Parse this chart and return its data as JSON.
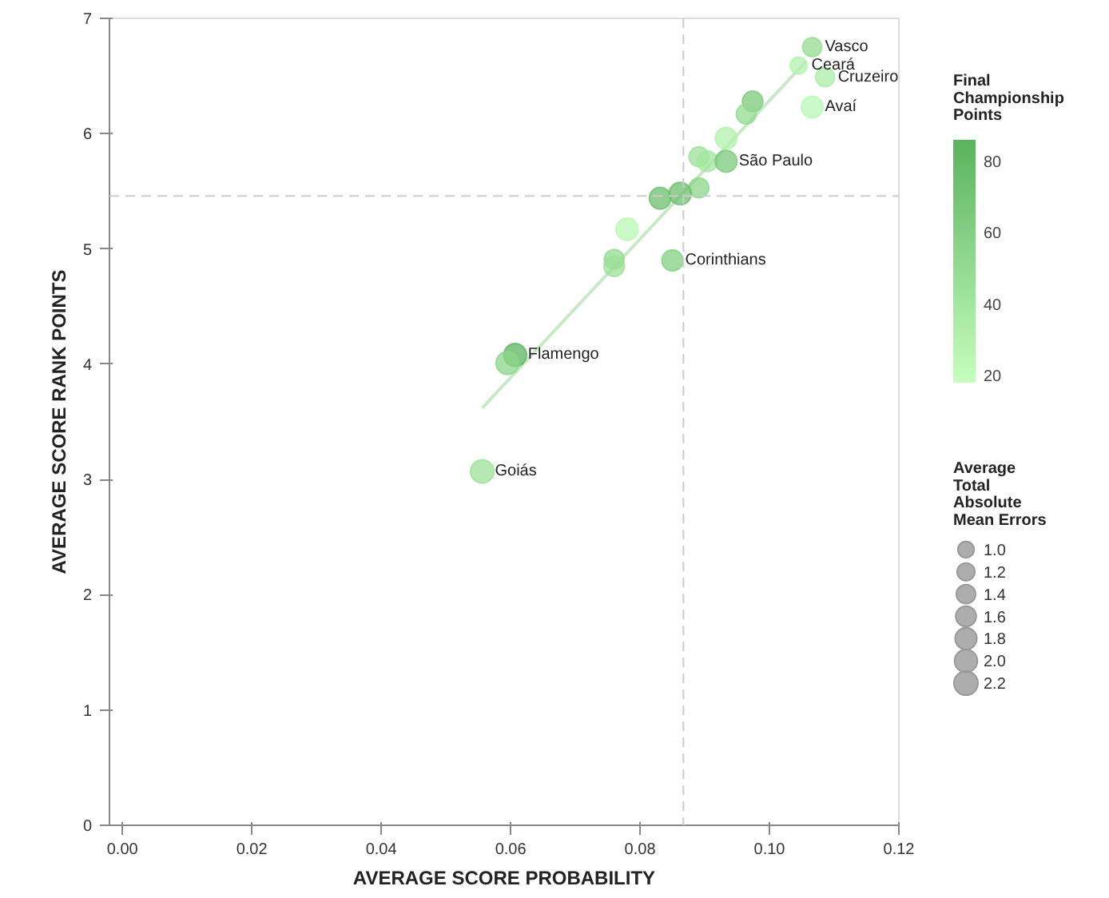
{
  "chart_data": {
    "type": "scatter",
    "xlabel": "AVERAGE SCORE PROBABILITY",
    "ylabel": "AVERAGE SCORE RANK POINTS",
    "clabel": "Final Championship Points",
    "legend_title": "Average Total Absolute Mean Errors",
    "xlim": [
      -0.002,
      0.12
    ],
    "ylim": [
      0,
      7
    ],
    "xticks": [
      {
        "value": 0,
        "label": "0.00"
      },
      {
        "value": 0.02,
        "label": "0.02"
      },
      {
        "value": 0.04,
        "label": "0.04"
      },
      {
        "value": 0.06,
        "label": "0.06"
      },
      {
        "value": 0.08,
        "label": "0.08"
      },
      {
        "value": 0.1,
        "label": "0.10"
      },
      {
        "value": 0.12,
        "label": "0.12"
      }
    ],
    "yticks": [
      0,
      1,
      2,
      3,
      4,
      5,
      6,
      7
    ],
    "clim": [
      18,
      86
    ],
    "cticks": [
      20,
      40,
      60,
      80
    ],
    "size_legend": [
      {
        "value": 1.0,
        "label": "1.0"
      },
      {
        "value": 1.2,
        "label": "1.2"
      },
      {
        "value": 1.4,
        "label": "1.4"
      },
      {
        "value": 1.6,
        "label": "1.6"
      },
      {
        "value": 1.8,
        "label": "1.8"
      },
      {
        "value": 2.0,
        "label": "2.0"
      },
      {
        "value": 2.2,
        "label": "2.2"
      }
    ],
    "grid": false,
    "series": [
      {
        "type": "scatter",
        "x": [
          0.1066,
          0.1045,
          0.1086,
          0.1066,
          0.0974,
          0.0964,
          0.0933,
          0.0891,
          0.0904,
          0.0933,
          0.0891,
          0.0831,
          0.0862,
          0.078,
          0.076,
          0.076,
          0.085,
          0.0607,
          0.0595,
          0.0556
        ],
        "values": [
          6.75,
          6.59,
          6.49,
          6.23,
          6.28,
          6.17,
          5.96,
          5.8,
          5.76,
          5.76,
          5.53,
          5.44,
          5.48,
          5.17,
          4.91,
          4.85,
          4.9,
          4.08,
          4.01,
          3.07
        ],
        "cvalues": [
          50,
          30,
          35,
          25,
          65,
          50,
          30,
          45,
          40,
          65,
          55,
          75,
          75,
          25,
          50,
          45,
          60,
          85,
          55,
          45
        ],
        "colors": [
          "#94db91",
          "#b3f1ae",
          "#aceca7",
          "#bbf7b5",
          "#7cca7c",
          "#94db91",
          "#b3f1ae",
          "#9ce098",
          "#a4e6a0",
          "#7cca7c",
          "#8cd58b",
          "#6cbf6e",
          "#6cbf6e",
          "#bbf7b5",
          "#94db91",
          "#9ce098",
          "#84d083",
          "#5cb460",
          "#8cd58b",
          "#9ce098"
        ],
        "sizes": [
          1.4,
          1.1,
          1.4,
          1.8,
          1.6,
          1.5,
          1.8,
          1.5,
          1.6,
          1.8,
          1.5,
          1.8,
          1.9,
          1.9,
          1.5,
          1.6,
          1.7,
          2.0,
          2.0,
          2.1
        ]
      },
      {
        "type": "line",
        "color": "#c8e8c8",
        "x": [
          0.0556,
          0.1057
        ],
        "values": [
          3.62,
          6.63
        ]
      }
    ],
    "ref_lines": [
      {
        "axis": "x",
        "value": 0.0867,
        "color": "#cccccc",
        "line_style": "dashed"
      },
      {
        "axis": "y",
        "value": 5.46,
        "color": "#cccccc",
        "line_style": "dashed"
      }
    ],
    "annotations": [
      {
        "text": "Vasco",
        "x": 0.1066,
        "y": 6.75
      },
      {
        "text": "Ceará",
        "x": 0.1045,
        "y": 6.59
      },
      {
        "text": "Cruzeiro",
        "x": 0.1086,
        "y": 6.49
      },
      {
        "text": "Avaí",
        "x": 0.1066,
        "y": 6.23
      },
      {
        "text": "São Paulo",
        "x": 0.0933,
        "y": 5.76
      },
      {
        "text": "Corinthians",
        "x": 0.085,
        "y": 4.9
      },
      {
        "text": "Flamengo",
        "x": 0.0607,
        "y": 4.08
      },
      {
        "text": "Goiás",
        "x": 0.0556,
        "y": 3.07
      }
    ]
  }
}
